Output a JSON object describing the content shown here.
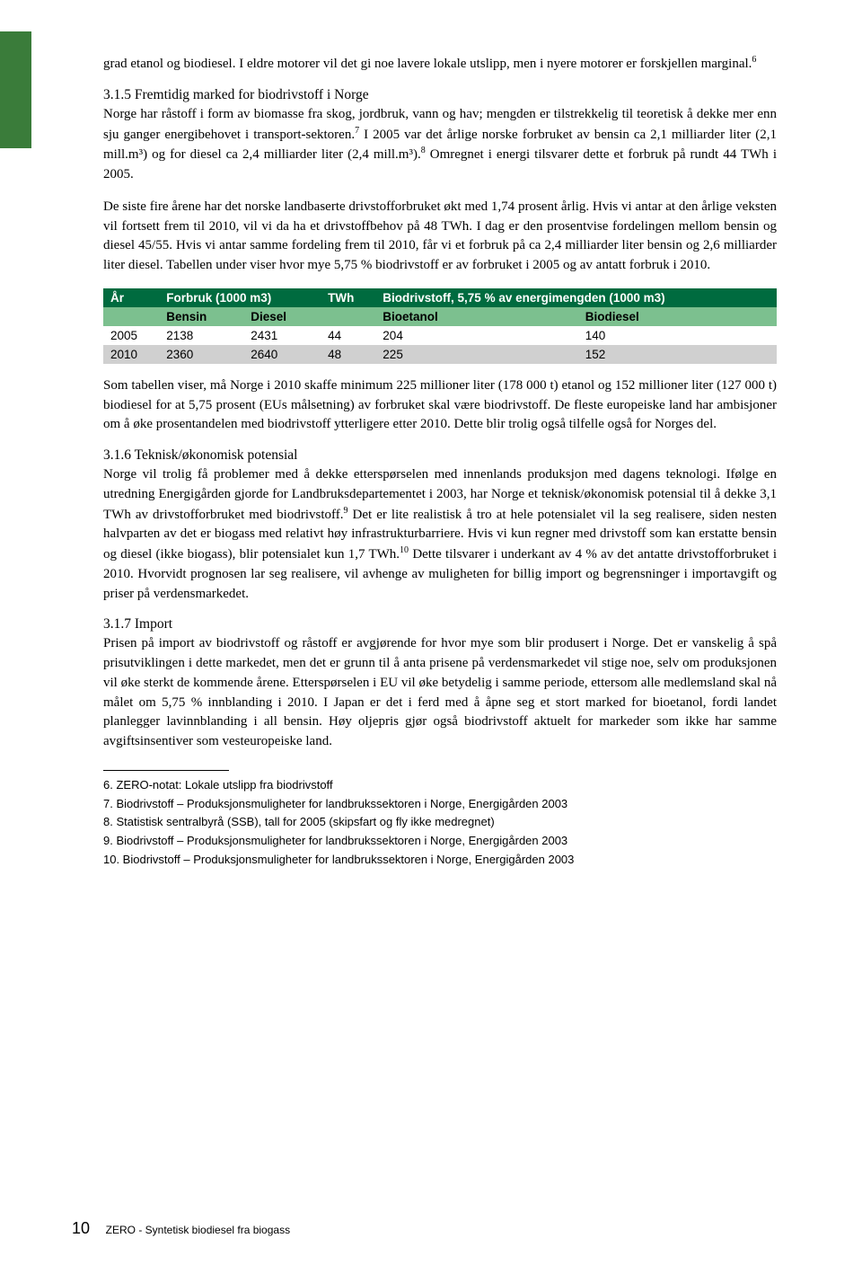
{
  "para1": "grad etanol og biodiesel. I eldre motorer vil det gi noe lavere lokale utslipp, men i nyere motorer er forskjellen marginal.",
  "para1_sup": "6",
  "head315": "3.1.5 Fremtidig marked for biodrivstoff i Norge",
  "para2a": "Norge har råstoff i form av biomasse fra skog, jordbruk, vann og hav; mengden er tilstrekkelig til teoretisk å dekke mer enn sju ganger energibehovet i transport-sektoren.",
  "para2a_sup": "7",
  "para2b": " I 2005 var det årlige norske forbruket av bensin ca 2,1 milliarder liter (2,1 mill.m³) og for diesel ca 2,4 milliarder liter (2,4 mill.m³).",
  "para2b_sup": "8",
  "para2c": " Omregnet i energi tilsvarer dette et forbruk på rundt 44 TWh i 2005.",
  "para3": "De siste fire årene har det norske landbaserte drivstofforbruket økt med 1,74 prosent årlig. Hvis vi antar at den årlige veksten vil fortsett frem til 2010, vil vi da ha et drivstoffbehov på 48 TWh. I dag er den prosentvise fordelingen mellom bensin og diesel 45/55. Hvis vi antar samme fordeling frem til 2010, får vi et forbruk på ca 2,4 milliarder liter bensin og 2,6 milliarder liter diesel. Tabellen under viser hvor mye 5,75 % biodrivstoff er av forbruket i 2005 og av antatt forbruk i 2010.",
  "table": {
    "h1": {
      "c1": "År",
      "c2": "Forbruk (1000 m3)",
      "c3": "TWh",
      "c4": "Biodrivstoff, 5,75 % av energimengden (1000 m3)"
    },
    "h2": {
      "c1": "",
      "c2": "Bensin",
      "c3": "Diesel",
      "c4": "",
      "c5": "Bioetanol",
      "c6": "Biodiesel"
    },
    "r1": {
      "c1": "2005",
      "c2": "2138",
      "c3": "2431",
      "c4": "44",
      "c5": "204",
      "c6": "140"
    },
    "r2": {
      "c1": "2010",
      "c2": "2360",
      "c3": "2640",
      "c4": "48",
      "c5": "225",
      "c6": "152"
    }
  },
  "para4": "Som tabellen viser, må Norge i 2010 skaffe minimum 225 millioner liter (178 000 t) etanol og 152 millioner liter (127 000 t) biodiesel for at 5,75 prosent (EUs målsetning) av forbruket skal være biodrivstoff. De fleste europeiske land har ambisjoner om å øke prosentandelen med biodrivstoff ytterligere etter 2010. Dette blir trolig også tilfelle også for Norges del.",
  "head316": "3.1.6 Teknisk/økonomisk potensial",
  "para5a": "Norge vil trolig få problemer med å dekke etterspørselen med innenlands produksjon med dagens teknologi. Ifølge en utredning Energigården gjorde for Landbruksdepartementet i 2003, har Norge et teknisk/økonomisk potensial til å dekke 3,1 TWh av drivstofforbruket med biodrivstoff.",
  "para5a_sup": "9",
  "para5b": " Det er lite realistisk å tro at hele potensialet vil la seg realisere, siden nesten halvparten av det er biogass med relativt høy infrastrukturbarriere. Hvis vi kun regner med drivstoff som kan erstatte bensin og diesel (ikke biogass), blir potensialet kun 1,7 TWh.",
  "para5b_sup": "10",
  "para5c": " Dette tilsvarer i underkant av 4 % av det antatte drivstofforbruket i 2010. Hvorvidt prognosen lar seg realisere, vil avhenge av muligheten for billig import og begrensninger i importavgift og priser på verdensmarkedet.",
  "head317": "3.1.7 Import",
  "para6": "Prisen på import av biodrivstoff og råstoff er avgjørende for hvor mye som blir produsert i Norge. Det er vanskelig å spå prisutviklingen i dette markedet, men det er grunn til å anta prisene på verdensmarkedet vil stige noe, selv om produksjonen vil øke sterkt de kommende årene. Etterspørselen i EU vil øke betydelig i samme periode, ettersom alle medlemsland skal nå målet om 5,75 % innblanding i 2010. I Japan er det i ferd med å åpne seg et stort marked for bioetanol, fordi landet planlegger lavinnblanding i all bensin. Høy oljepris gjør også biodrivstoff aktuelt for markeder som ikke har samme avgiftsinsentiver som vesteuropeiske land.",
  "fn6": "6. ZERO-notat: Lokale utslipp fra biodrivstoff",
  "fn7": "7. Biodrivstoff – Produksjonsmuligheter for landbrukssektoren i Norge, Energigården 2003",
  "fn8": "8. Statistisk sentralbyrå (SSB), tall for 2005 (skipsfart og fly ikke medregnet)",
  "fn9": "9. Biodrivstoff – Produksjonsmuligheter for landbrukssektoren i Norge, Energigården 2003",
  "fn10": "10. Biodrivstoff – Produksjonsmuligheter for landbrukssektoren i Norge, Energigården 2003",
  "page_num": "10",
  "footer_title": "ZERO - Syntetisk biodiesel fra biogass"
}
